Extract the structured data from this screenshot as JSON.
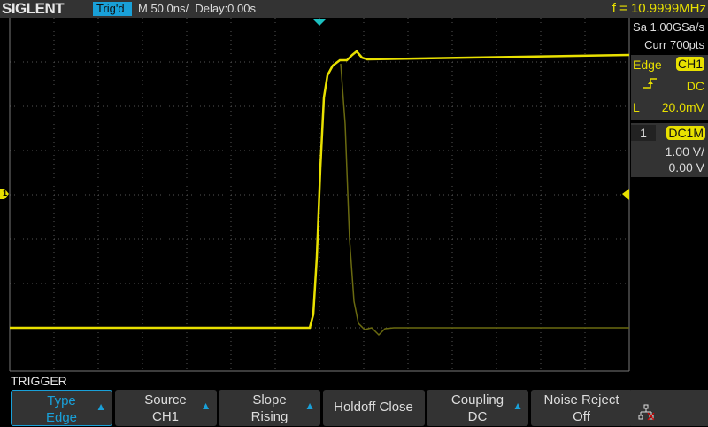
{
  "header": {
    "brand": "SIGLENT",
    "trigger_status": "Trig'd",
    "timebase": "M 50.0ns/",
    "delay": "Delay:0.00s",
    "frequency": "f = 10.9999MHz"
  },
  "acquisition": {
    "sample_rate": "Sa 1.00GSa/s",
    "memory": "Curr 700pts"
  },
  "trigger_info": {
    "type": "Edge",
    "source": "CH1",
    "slope_icon": "rising-edge-icon",
    "coupling": "DC",
    "level_label": "L",
    "level": "20.0mV"
  },
  "channel": {
    "number": "1",
    "coupling": "DC1M",
    "scale": "1.00 V/",
    "offset": "0.00 V",
    "marker": "1"
  },
  "menu": {
    "title": "TRIGGER",
    "buttons": [
      {
        "top": "Type",
        "bottom": "Edge",
        "arrow": true,
        "selected": true
      },
      {
        "top": "Source",
        "bottom": "CH1",
        "arrow": true
      },
      {
        "top": "Slope",
        "bottom": "Rising",
        "arrow": true
      },
      {
        "top": "Holdoff Close",
        "bottom": "",
        "arrow": false
      },
      {
        "top": "Coupling",
        "bottom": "DC",
        "arrow": true
      },
      {
        "top": "Noise Reject",
        "bottom": "Off",
        "arrow": false
      }
    ]
  },
  "colors": {
    "ch1": "#e8e000",
    "accent": "#19a0d8"
  }
}
